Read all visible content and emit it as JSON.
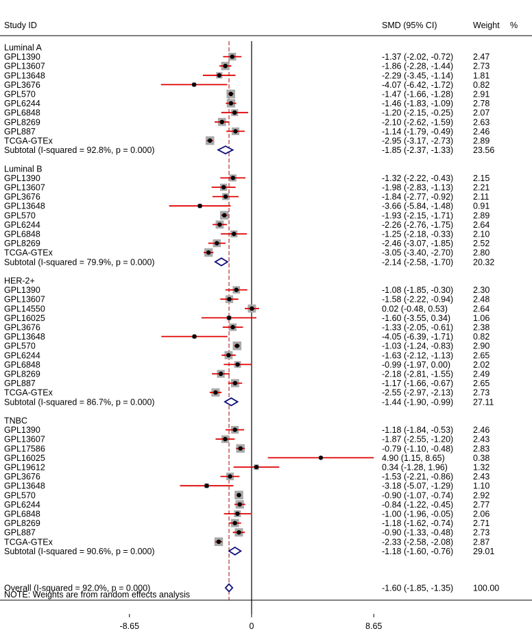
{
  "chart_data": {
    "type": "forest",
    "headers": {
      "study": "Study ID",
      "effect": "SMD (95% CI)",
      "weight": "Weight",
      "weight_unit": "%"
    },
    "x_axis": {
      "ticks": [
        -8.65,
        0,
        8.65
      ],
      "tick_labels": [
        "-8.65",
        "0",
        "8.65"
      ],
      "null_line": 0,
      "overall_line": -1.6
    },
    "groups": [
      {
        "name": "Luminal A",
        "studies": [
          {
            "id": "GPL1390",
            "smd": -1.37,
            "lo": -2.02,
            "hi": -0.72,
            "ci_text": "-1.37 (-2.02, -0.72)",
            "weight": "2.47"
          },
          {
            "id": "GPL13607",
            "smd": -1.86,
            "lo": -2.28,
            "hi": -1.44,
            "ci_text": "-1.86 (-2.28, -1.44)",
            "weight": "2.73"
          },
          {
            "id": "GPL13648",
            "smd": -2.29,
            "lo": -3.45,
            "hi": -1.14,
            "ci_text": "-2.29 (-3.45, -1.14)",
            "weight": "1.81"
          },
          {
            "id": "GPL3676",
            "smd": -4.07,
            "lo": -6.42,
            "hi": -1.72,
            "ci_text": "-4.07 (-6.42, -1.72)",
            "weight": "0.82"
          },
          {
            "id": "GPL570",
            "smd": -1.47,
            "lo": -1.66,
            "hi": -1.28,
            "ci_text": "-1.47 (-1.66, -1.28)",
            "weight": "2.91"
          },
          {
            "id": "GPL6244",
            "smd": -1.46,
            "lo": -1.83,
            "hi": -1.09,
            "ci_text": "-1.46 (-1.83, -1.09)",
            "weight": "2.78"
          },
          {
            "id": "GPL6848",
            "smd": -1.2,
            "lo": -2.15,
            "hi": -0.25,
            "ci_text": "-1.20 (-2.15, -0.25)",
            "weight": "2.07"
          },
          {
            "id": "GPL8269",
            "smd": -2.1,
            "lo": -2.62,
            "hi": -1.59,
            "ci_text": "-2.10 (-2.62, -1.59)",
            "weight": "2.63"
          },
          {
            "id": "GPL887",
            "smd": -1.14,
            "lo": -1.79,
            "hi": -0.49,
            "ci_text": "-1.14 (-1.79, -0.49)",
            "weight": "2.46"
          },
          {
            "id": "TCGA-GTEx",
            "smd": -2.95,
            "lo": -3.17,
            "hi": -2.73,
            "ci_text": "-2.95 (-3.17, -2.73)",
            "weight": "2.89"
          }
        ],
        "subtotal": {
          "label": "Subtotal  (I-squared = 92.8%, p = 0.000)",
          "smd": -1.85,
          "lo": -2.37,
          "hi": -1.33,
          "ci_text": "-1.85 (-2.37, -1.33)",
          "weight": "23.56"
        }
      },
      {
        "name": "Luminal B",
        "studies": [
          {
            "id": "GPL1390",
            "smd": -1.32,
            "lo": -2.22,
            "hi": -0.43,
            "ci_text": "-1.32 (-2.22, -0.43)",
            "weight": "2.15"
          },
          {
            "id": "GPL13607",
            "smd": -1.98,
            "lo": -2.83,
            "hi": -1.13,
            "ci_text": "-1.98 (-2.83, -1.13)",
            "weight": "2.21"
          },
          {
            "id": "GPL3676",
            "smd": -1.84,
            "lo": -2.77,
            "hi": -0.92,
            "ci_text": "-1.84 (-2.77, -0.92)",
            "weight": "2.11"
          },
          {
            "id": "GPL13648",
            "smd": -3.66,
            "lo": -5.84,
            "hi": -1.48,
            "ci_text": "-3.66 (-5.84, -1.48)",
            "weight": "0.91"
          },
          {
            "id": "GPL570",
            "smd": -1.93,
            "lo": -2.15,
            "hi": -1.71,
            "ci_text": "-1.93 (-2.15, -1.71)",
            "weight": "2.89"
          },
          {
            "id": "GPL6244",
            "smd": -2.26,
            "lo": -2.76,
            "hi": -1.75,
            "ci_text": "-2.26 (-2.76, -1.75)",
            "weight": "2.64"
          },
          {
            "id": "GPL6848",
            "smd": -1.25,
            "lo": -2.18,
            "hi": -0.33,
            "ci_text": "-1.25 (-2.18, -0.33)",
            "weight": "2.10"
          },
          {
            "id": "GPL8269",
            "smd": -2.46,
            "lo": -3.07,
            "hi": -1.85,
            "ci_text": "-2.46 (-3.07, -1.85)",
            "weight": "2.52"
          },
          {
            "id": "TCGA-GTEx",
            "smd": -3.05,
            "lo": -3.4,
            "hi": -2.7,
            "ci_text": "-3.05 (-3.40, -2.70)",
            "weight": "2.80"
          }
        ],
        "subtotal": {
          "label": "Subtotal  (I-squared = 79.9%, p = 0.000)",
          "smd": -2.14,
          "lo": -2.58,
          "hi": -1.7,
          "ci_text": "-2.14 (-2.58, -1.70)",
          "weight": "20.32"
        }
      },
      {
        "name": "HER-2+",
        "studies": [
          {
            "id": "GPL1390",
            "smd": -1.08,
            "lo": -1.85,
            "hi": -0.3,
            "ci_text": "-1.08 (-1.85, -0.30)",
            "weight": "2.30"
          },
          {
            "id": "GPL13607",
            "smd": -1.58,
            "lo": -2.22,
            "hi": -0.94,
            "ci_text": "-1.58 (-2.22, -0.94)",
            "weight": "2.48"
          },
          {
            "id": "GPL14550",
            "smd": 0.02,
            "lo": -0.48,
            "hi": 0.53,
            "ci_text": "0.02 (-0.48, 0.53)",
            "weight": "2.64"
          },
          {
            "id": "GPL16025",
            "smd": -1.6,
            "lo": -3.55,
            "hi": 0.34,
            "ci_text": "-1.60 (-3.55, 0.34)",
            "weight": "1.06"
          },
          {
            "id": "GPL3676",
            "smd": -1.33,
            "lo": -2.05,
            "hi": -0.61,
            "ci_text": "-1.33 (-2.05, -0.61)",
            "weight": "2.38"
          },
          {
            "id": "GPL13648",
            "smd": -4.05,
            "lo": -6.39,
            "hi": -1.71,
            "ci_text": "-4.05 (-6.39, -1.71)",
            "weight": "0.82"
          },
          {
            "id": "GPL570",
            "smd": -1.03,
            "lo": -1.24,
            "hi": -0.83,
            "ci_text": "-1.03 (-1.24, -0.83)",
            "weight": "2.90"
          },
          {
            "id": "GPL6244",
            "smd": -1.63,
            "lo": -2.12,
            "hi": -1.13,
            "ci_text": "-1.63 (-2.12, -1.13)",
            "weight": "2.65"
          },
          {
            "id": "GPL6848",
            "smd": -0.99,
            "lo": -1.97,
            "hi": 0.0,
            "ci_text": "-0.99 (-1.97, 0.00)",
            "weight": "2.02"
          },
          {
            "id": "GPL8269",
            "smd": -2.18,
            "lo": -2.81,
            "hi": -1.55,
            "ci_text": "-2.18 (-2.81, -1.55)",
            "weight": "2.49"
          },
          {
            "id": "GPL887",
            "smd": -1.17,
            "lo": -1.66,
            "hi": -0.67,
            "ci_text": "-1.17 (-1.66, -0.67)",
            "weight": "2.65"
          },
          {
            "id": "TCGA-GTEx",
            "smd": -2.55,
            "lo": -2.97,
            "hi": -2.13,
            "ci_text": "-2.55 (-2.97, -2.13)",
            "weight": "2.73"
          }
        ],
        "subtotal": {
          "label": "Subtotal  (I-squared = 86.7%, p = 0.000)",
          "smd": -1.44,
          "lo": -1.9,
          "hi": -0.99,
          "ci_text": "-1.44 (-1.90, -0.99)",
          "weight": "27.11"
        }
      },
      {
        "name": "TNBC",
        "studies": [
          {
            "id": "GPL1390",
            "smd": -1.18,
            "lo": -1.84,
            "hi": -0.53,
            "ci_text": "-1.18 (-1.84, -0.53)",
            "weight": "2.46"
          },
          {
            "id": "GPL13607",
            "smd": -1.87,
            "lo": -2.55,
            "hi": -1.2,
            "ci_text": "-1.87 (-2.55, -1.20)",
            "weight": "2.43"
          },
          {
            "id": "GPL17586",
            "smd": -0.79,
            "lo": -1.1,
            "hi": -0.48,
            "ci_text": "-0.79 (-1.10, -0.48)",
            "weight": "2.83"
          },
          {
            "id": "GPL16025",
            "smd": 4.9,
            "lo": 1.15,
            "hi": 8.65,
            "ci_text": "4.90 (1.15, 8.65)",
            "weight": "0.38"
          },
          {
            "id": "GPL19612",
            "smd": 0.34,
            "lo": -1.28,
            "hi": 1.96,
            "ci_text": "0.34 (-1.28, 1.96)",
            "weight": "1.32"
          },
          {
            "id": "GPL3676",
            "smd": -1.53,
            "lo": -2.21,
            "hi": -0.86,
            "ci_text": "-1.53 (-2.21, -0.86)",
            "weight": "2.43"
          },
          {
            "id": "GPL13648",
            "smd": -3.18,
            "lo": -5.07,
            "hi": -1.29,
            "ci_text": "-3.18 (-5.07, -1.29)",
            "weight": "1.10"
          },
          {
            "id": "GPL570",
            "smd": -0.9,
            "lo": -1.07,
            "hi": -0.74,
            "ci_text": "-0.90 (-1.07, -0.74)",
            "weight": "2.92"
          },
          {
            "id": "GPL6244",
            "smd": -0.84,
            "lo": -1.22,
            "hi": -0.45,
            "ci_text": "-0.84 (-1.22, -0.45)",
            "weight": "2.77"
          },
          {
            "id": "GPL6848",
            "smd": -1.0,
            "lo": -1.96,
            "hi": -0.05,
            "ci_text": "-1.00 (-1.96, -0.05)",
            "weight": "2.06"
          },
          {
            "id": "GPL8269",
            "smd": -1.18,
            "lo": -1.62,
            "hi": -0.74,
            "ci_text": "-1.18 (-1.62, -0.74)",
            "weight": "2.71"
          },
          {
            "id": "GPL887",
            "smd": -0.9,
            "lo": -1.33,
            "hi": -0.48,
            "ci_text": "-0.90 (-1.33, -0.48)",
            "weight": "2.73"
          },
          {
            "id": "TCGA-GTEx",
            "smd": -2.33,
            "lo": -2.58,
            "hi": -2.08,
            "ci_text": "-2.33 (-2.58, -2.08)",
            "weight": "2.87"
          }
        ],
        "subtotal": {
          "label": "Subtotal  (I-squared = 90.6%, p = 0.000)",
          "smd": -1.18,
          "lo": -1.6,
          "hi": -0.76,
          "ci_text": "-1.18 (-1.60, -0.76)",
          "weight": "29.01"
        }
      }
    ],
    "overall": {
      "label": "Overall  (I-squared = 92.0%, p = 0.000)",
      "smd": -1.6,
      "lo": -1.85,
      "hi": -1.35,
      "ci_text": "-1.60 (-1.85, -1.35)",
      "weight": "100.00"
    },
    "note": "NOTE: Weights are from random effects analysis",
    "colors": {
      "ci_line": "#e00000",
      "weight_box": "#a9a9a9",
      "diamond": "#10107a",
      "overall_line": "#b03030",
      "point": "#000000"
    }
  }
}
